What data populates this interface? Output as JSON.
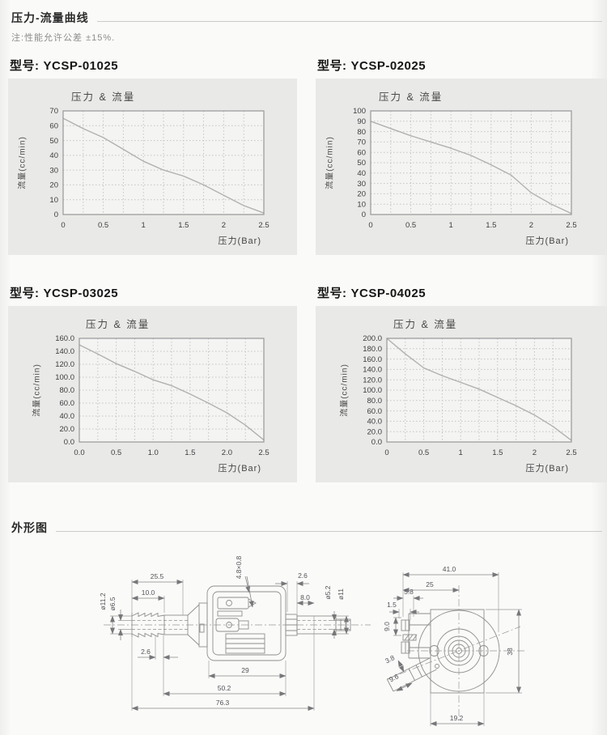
{
  "page": {
    "curves_section_title": "压力-流量曲线",
    "curves_note": "注:性能允许公差 ±15%.",
    "outline_section_title": "外形图"
  },
  "models": [
    {
      "label": "型号:",
      "name": "YCSP-01025"
    },
    {
      "label": "型号:",
      "name": "YCSP-02025"
    },
    {
      "label": "型号:",
      "name": "YCSP-03025"
    },
    {
      "label": "型号:",
      "name": "YCSP-04025"
    }
  ],
  "chart_data": [
    {
      "type": "line",
      "model": "YCSP-01025",
      "title": "压力 & 流量",
      "xlabel": "压力(Bar)",
      "ylabel": "流量(cc/min)",
      "x": [
        0,
        0.25,
        0.5,
        0.75,
        1,
        1.25,
        1.5,
        1.75,
        2,
        2.25,
        2.5
      ],
      "y": [
        65,
        58,
        52,
        44,
        36,
        30,
        26,
        20,
        13,
        6,
        1
      ],
      "xlim": [
        0,
        2.5
      ],
      "ylim": [
        0,
        70
      ],
      "x_minor_step": 0.25,
      "grid": "dotted",
      "legend": "none",
      "x_tick_values": [
        0,
        0.5,
        1,
        1.5,
        2,
        2.5
      ],
      "x_ticks": [
        "0",
        "0.5",
        "1",
        "1.5",
        "2",
        "2.5"
      ],
      "y_tick_values": [
        70,
        60,
        50,
        40,
        30,
        20,
        10,
        0
      ],
      "y_ticks": [
        "70",
        "60",
        "50",
        "40",
        "30",
        "20",
        "10",
        "0"
      ]
    },
    {
      "type": "line",
      "model": "YCSP-02025",
      "title": "压力 & 流量",
      "xlabel": "压力(Bar)",
      "ylabel": "流量(cc/min)",
      "x": [
        0,
        0.25,
        0.5,
        0.75,
        1,
        1.25,
        1.5,
        1.75,
        2,
        2.25,
        2.5
      ],
      "y": [
        90,
        83,
        76,
        70,
        64,
        57,
        48,
        38,
        21,
        10,
        1
      ],
      "xlim": [
        0,
        2.5
      ],
      "ylim": [
        0,
        100
      ],
      "x_minor_step": 0.25,
      "grid": "dotted",
      "legend": "none",
      "x_tick_values": [
        0,
        0.5,
        1,
        1.5,
        2,
        2.5
      ],
      "x_ticks": [
        "0",
        "0.5",
        "1",
        "1.5",
        "2",
        "2.5"
      ],
      "y_tick_values": [
        100,
        90,
        80,
        70,
        60,
        50,
        40,
        30,
        20,
        10,
        0
      ],
      "y_ticks": [
        "100",
        "90",
        "80",
        "70",
        "60",
        "50",
        "40",
        "30",
        "20",
        "10",
        "0"
      ]
    },
    {
      "type": "line",
      "model": "YCSP-03025",
      "title": "压力 & 流量",
      "xlabel": "压力(Bar)",
      "ylabel": "流量(cc/min)",
      "x": [
        0,
        0.25,
        0.5,
        0.75,
        1,
        1.25,
        1.5,
        1.75,
        2,
        2.25,
        2.5
      ],
      "y": [
        150,
        136,
        121,
        109,
        96,
        87,
        74,
        60,
        45,
        26,
        3
      ],
      "xlim": [
        0,
        2.5
      ],
      "ylim": [
        0,
        160
      ],
      "x_minor_step": 0.25,
      "grid": "dotted",
      "legend": "none",
      "x_tick_values": [
        0,
        0.5,
        1,
        1.5,
        2,
        2.5
      ],
      "x_ticks": [
        "0.0",
        "0.5",
        "1.0",
        "1.5",
        "2.0",
        "2.5"
      ],
      "y_tick_values": [
        160,
        140,
        120,
        100,
        80,
        60,
        40,
        20,
        0
      ],
      "y_ticks": [
        "160.0",
        "140.0",
        "120.0",
        "100.0",
        "80.0",
        "60.0",
        "40.0",
        "20.0",
        "0.0"
      ]
    },
    {
      "type": "line",
      "model": "YCSP-04025",
      "title": "压力 & 流量",
      "xlabel": "压力(Bar)",
      "ylabel": "流量(cc/min)",
      "x": [
        0,
        0.25,
        0.5,
        0.75,
        1,
        1.25,
        1.5,
        1.75,
        2,
        2.25,
        2.5
      ],
      "y": [
        200,
        170,
        143,
        128,
        115,
        102,
        86,
        70,
        52,
        30,
        3
      ],
      "xlim": [
        0,
        2.5
      ],
      "ylim": [
        0,
        200
      ],
      "x_minor_step": 0.25,
      "grid": "dotted",
      "legend": "none",
      "x_tick_values": [
        0,
        0.5,
        1,
        1.5,
        2,
        2.5
      ],
      "x_ticks": [
        "0",
        "0.5",
        "1",
        "1.5",
        "2",
        "2.5"
      ],
      "y_tick_values": [
        200,
        180,
        160,
        140,
        120,
        100,
        80,
        60,
        40,
        20,
        0
      ],
      "y_ticks": [
        "200.0",
        "180.0",
        "160.0",
        "140.0",
        "120.0",
        "100.0",
        "80.0",
        "60.0",
        "40.0",
        "20.0",
        "0.0"
      ]
    }
  ],
  "drawings": {
    "side_view": {
      "dims": {
        "len_25_5": "25.5",
        "len_10_0": "10.0",
        "len_2_6_left": "2.6",
        "terminal": "4.8×0.8",
        "len_2_6_right": "2.6",
        "len_8_0": "8.0",
        "dia_11_2": "ø11.2",
        "dia_6_5": "ø6.5",
        "dia_5_2": "ø5.2",
        "dia_11": "ø11",
        "len_29": "29",
        "len_50_2": "50.2",
        "len_76_3": "76.3"
      }
    },
    "end_view": {
      "dims": {
        "len_41_0": "41.0",
        "len_25": "25",
        "len_5_8": "5.8",
        "len_1_5": "1.5",
        "len_9_0": "9.0",
        "len_3_8": "3.8",
        "len_9_6": "9.6",
        "len_38": "38",
        "len_19_2": "19.2"
      }
    }
  }
}
